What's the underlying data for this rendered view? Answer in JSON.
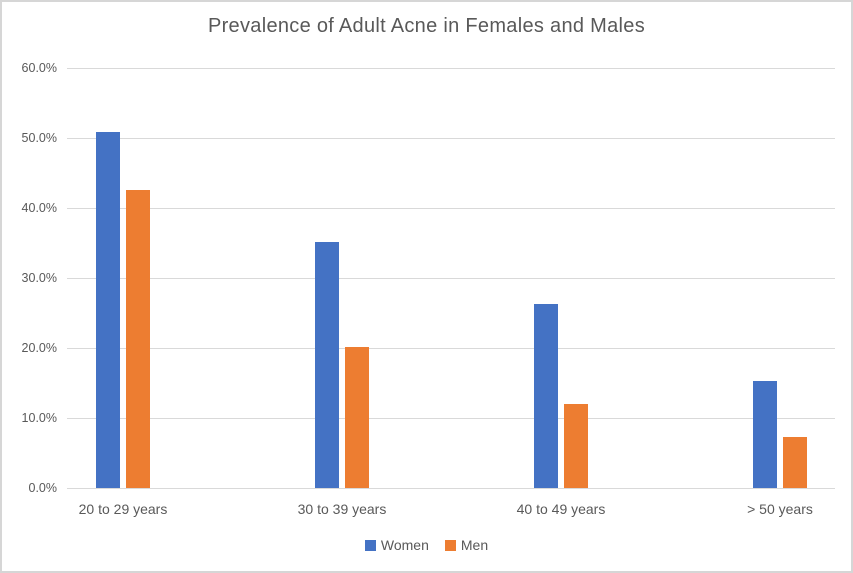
{
  "chart_data": {
    "type": "bar",
    "title": "Prevalence of Adult Acne in Females and Males",
    "categories": [
      "20 to 29 years",
      "30 to 39 years",
      "40 to 49 years",
      "> 50 years"
    ],
    "series": [
      {
        "name": "Women",
        "color": "#4472C4",
        "values": [
          50.9,
          35.2,
          26.3,
          15.3
        ]
      },
      {
        "name": "Men",
        "color": "#ED7D31",
        "values": [
          42.5,
          20.1,
          12.0,
          7.3
        ]
      }
    ],
    "yticks": [
      "0.0%",
      "10.0%",
      "20.0%",
      "30.0%",
      "40.0%",
      "50.0%",
      "60.0%"
    ],
    "ylim": [
      0,
      60
    ],
    "value_unit": "%",
    "xlabel": "",
    "ylabel": "",
    "grid": true,
    "legend_position": "bottom",
    "text_color": "#595959",
    "gridline_color": "#D9D9D9",
    "background_color": "#FFFFFF"
  }
}
